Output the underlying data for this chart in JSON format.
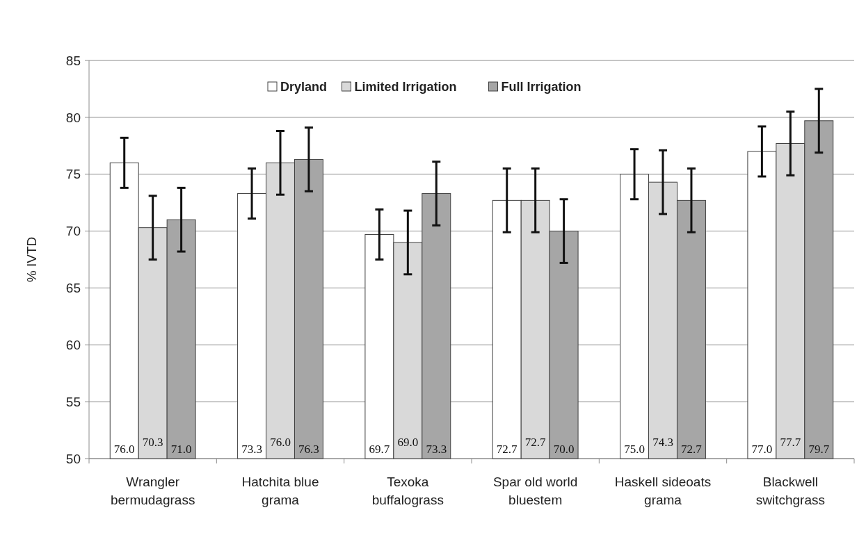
{
  "chart_data": {
    "type": "bar",
    "ylabel": "% IVTD",
    "categories": [
      "Wrangler bermudagrass",
      "Hatchita blue grama",
      "Texoka buffalograss",
      "Spar old world bluestem",
      "Haskell sideoats grama",
      "Blackwell switchgrass"
    ],
    "series": [
      {
        "name": "Dryland",
        "color": "#ffffff",
        "values": [
          76.0,
          73.3,
          69.7,
          72.7,
          75.0,
          77.0
        ],
        "errors": [
          2.2,
          2.2,
          2.2,
          2.8,
          2.2,
          2.2
        ],
        "value_labels": [
          "76.0",
          "73.3",
          "69.7",
          "72.7",
          "75.0",
          "77.0"
        ]
      },
      {
        "name": "Limited Irrigation",
        "color": "#d9d9d9",
        "values": [
          70.3,
          76.0,
          69.0,
          72.7,
          74.3,
          77.7
        ],
        "errors": [
          2.8,
          2.8,
          2.8,
          2.8,
          2.8,
          2.8
        ],
        "value_labels": [
          "70.3",
          "76.0",
          "69.0",
          "72.7",
          "74.3",
          "77.7"
        ]
      },
      {
        "name": "Full Irrigation",
        "color": "#a6a6a6",
        "values": [
          71.0,
          76.3,
          73.3,
          70.0,
          72.7,
          79.7
        ],
        "errors": [
          2.8,
          2.8,
          2.8,
          2.8,
          2.8,
          2.8
        ],
        "value_labels": [
          "71.0",
          "76.3",
          "73.3",
          "70.0",
          "72.7",
          "79.7"
        ]
      }
    ],
    "ylim": [
      50,
      85
    ],
    "yticks": [
      50,
      55,
      60,
      65,
      70,
      75,
      80,
      85
    ],
    "grid": "y",
    "legend": "top"
  }
}
